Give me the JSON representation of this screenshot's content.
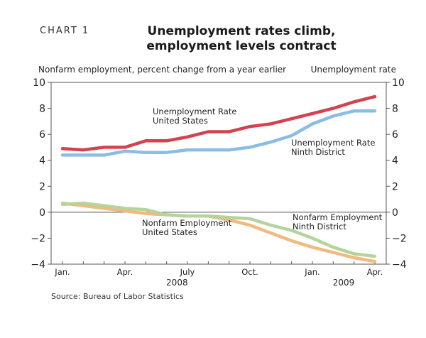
{
  "header": {
    "chart_label": "CHART 1",
    "title_line1": "Unemployment rates climb,",
    "title_line2": "employment levels contract"
  },
  "source": "Source: Bureau of Labor Statistics",
  "chart_data": {
    "type": "line",
    "y_left_label": "Nonfarm employment, percent change from a year earlier",
    "y_right_label": "Unemployment rate",
    "ylim": [
      -4,
      10
    ],
    "yticks": [
      10,
      8,
      6,
      4,
      2,
      0,
      -2,
      -4
    ],
    "yticks_display": [
      "10",
      "8",
      "6",
      "4",
      "2",
      "0",
      "−2",
      "−4"
    ],
    "x": [
      "Jan 2008",
      "Feb 2008",
      "Mar 2008",
      "Apr 2008",
      "May 2008",
      "Jun 2008",
      "Jul 2008",
      "Aug 2008",
      "Sep 2008",
      "Oct 2008",
      "Nov 2008",
      "Dec 2008",
      "Jan 2009",
      "Feb 2009",
      "Mar 2009",
      "Apr 2009"
    ],
    "xtick_labels": [
      {
        "index": 0,
        "label": "Jan."
      },
      {
        "index": 3,
        "label": "Apr."
      },
      {
        "index": 6,
        "label": "July"
      },
      {
        "index": 9,
        "label": "Oct."
      },
      {
        "index": 12,
        "label": "Jan."
      },
      {
        "index": 15,
        "label": "Apr."
      }
    ],
    "year_labels": [
      {
        "index": 5.5,
        "label": "2008"
      },
      {
        "index": 13.5,
        "label": "2009"
      }
    ],
    "grid": false,
    "series": [
      {
        "name": "Unemployment Rate United States",
        "label_lines": [
          "Unemployment Rate",
          "United States"
        ],
        "color": "#d2424f",
        "values": [
          4.9,
          4.8,
          5.0,
          5.0,
          5.5,
          5.5,
          5.8,
          6.2,
          6.2,
          6.6,
          6.8,
          7.2,
          7.6,
          8.0,
          8.5,
          8.9
        ]
      },
      {
        "name": "Unemployment Rate Ninth District",
        "label_lines": [
          "Unemployment Rate",
          "Ninth District"
        ],
        "color": "#8bbde3",
        "values": [
          4.4,
          4.4,
          4.4,
          4.7,
          4.6,
          4.6,
          4.8,
          4.8,
          4.8,
          5.0,
          5.4,
          5.9,
          6.8,
          7.4,
          7.8,
          7.8
        ]
      },
      {
        "name": "Nonfarm Employment Ninth District",
        "label_lines": [
          "Nonfarm Employment",
          "Ninth District"
        ],
        "color": "#b5d49a",
        "values": [
          0.6,
          0.7,
          0.5,
          0.3,
          0.2,
          -0.2,
          -0.3,
          -0.3,
          -0.4,
          -0.5,
          -1.0,
          -1.4,
          -2.0,
          -2.7,
          -3.2,
          -3.4
        ]
      },
      {
        "name": "Nonfarm Employment United States",
        "label_lines": [
          "Nonfarm Employment",
          "United States"
        ],
        "color": "#f0ba80",
        "values": [
          0.7,
          0.5,
          0.3,
          0.1,
          -0.1,
          -0.2,
          -0.3,
          -0.3,
          -0.6,
          -1.0,
          -1.6,
          -2.2,
          -2.7,
          -3.1,
          -3.5,
          -3.8
        ]
      }
    ]
  }
}
